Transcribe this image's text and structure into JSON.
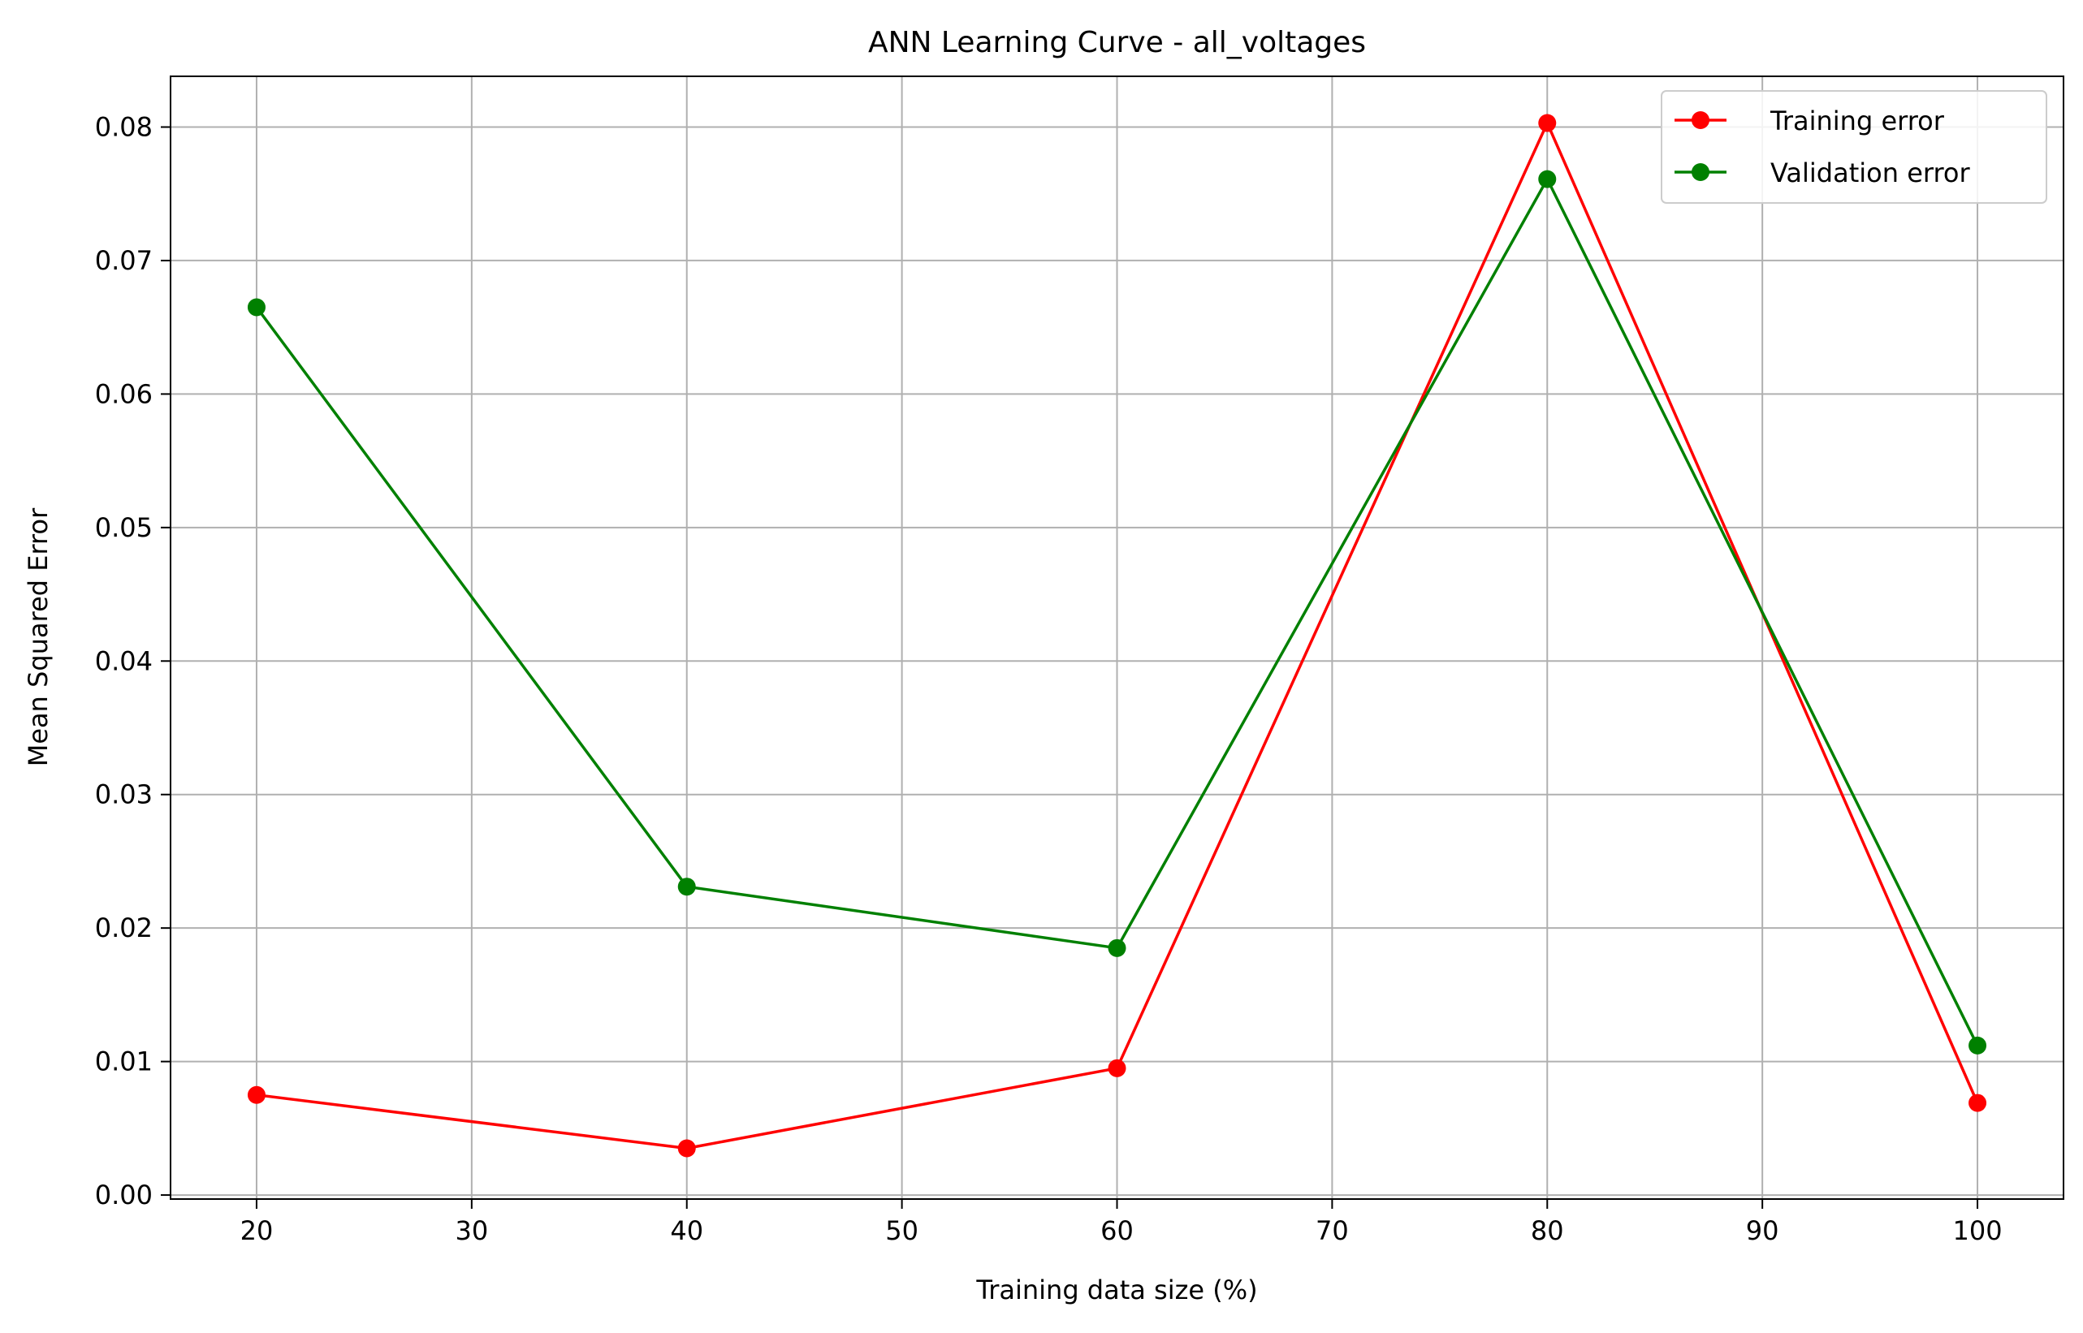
{
  "chart_data": {
    "type": "line",
    "title": "ANN Learning Curve - all_voltages",
    "xlabel": "Training data size (%)",
    "ylabel": "Mean Squared Error",
    "x": [
      20,
      40,
      60,
      80,
      100
    ],
    "xlim": [
      16,
      104
    ],
    "ylim": [
      -0.0003,
      0.0838
    ],
    "xticks": [
      20,
      30,
      40,
      50,
      60,
      70,
      80,
      90,
      100
    ],
    "yticks": [
      0.0,
      0.01,
      0.02,
      0.03,
      0.04,
      0.05,
      0.06,
      0.07,
      0.08
    ],
    "ytick_labels": [
      "0.00",
      "0.01",
      "0.02",
      "0.03",
      "0.04",
      "0.05",
      "0.06",
      "0.07",
      "0.08"
    ],
    "grid": true,
    "legend_position": "top-right",
    "series": [
      {
        "name": "Training error",
        "color": "#ff0000",
        "marker": "circle",
        "values": [
          0.0075,
          0.0035,
          0.0095,
          0.0803,
          0.0069
        ]
      },
      {
        "name": "Validation error",
        "color": "#008000",
        "marker": "circle",
        "values": [
          0.0665,
          0.0231,
          0.0185,
          0.0761,
          0.0112
        ]
      }
    ]
  }
}
